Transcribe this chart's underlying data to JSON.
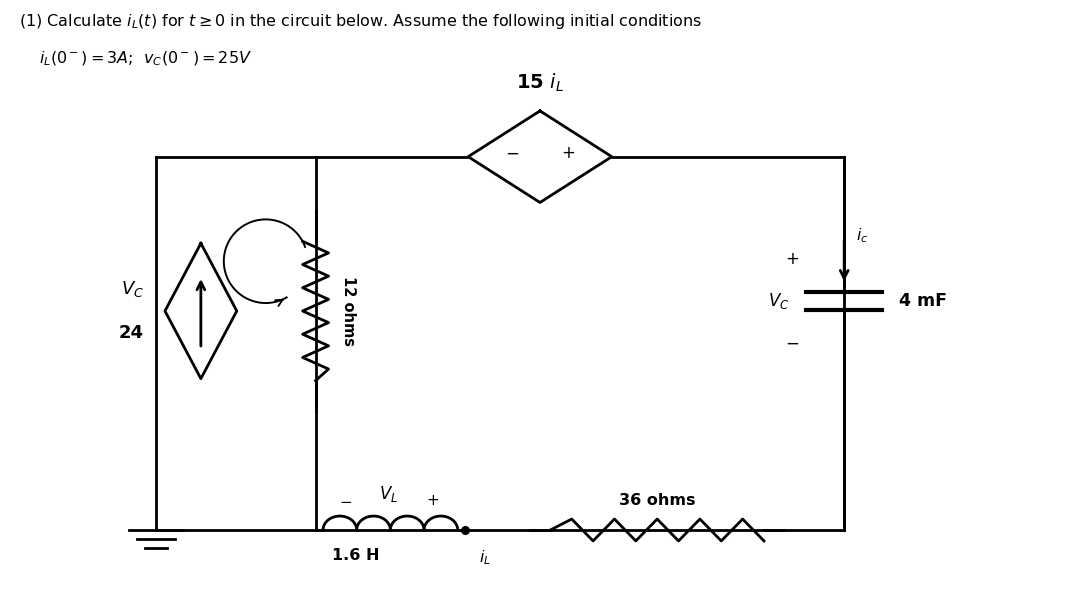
{
  "bg_color": "#ffffff",
  "text_color": "#000000",
  "line_color": "#000000",
  "lw": 2.0,
  "title1": "(1) Calculate $i_L(t)$ for $t \\geq 0$ in the circuit below. Assume the following initial conditions",
  "title2": "$i_L(0^-) = 3A$;  $v_C(0^-) = 25V$",
  "label_vc24_top": "$V_C$",
  "label_vc24_bot": "24",
  "label_12ohms": "12 ohms",
  "label_15iL": "15 $i_L$",
  "label_vl": "$V_L$",
  "label_16H": "1.6 H",
  "label_iL": "$i_L$",
  "label_36ohms": "36 ohms",
  "label_vc_right": "$V_C$",
  "label_4mF": "4 mF",
  "label_ic": "$i_c$"
}
